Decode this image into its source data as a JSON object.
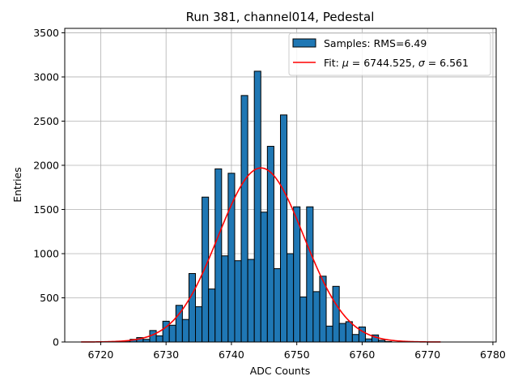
{
  "chart_data": {
    "type": "bar",
    "title": "Run 381, channel014, Pedestal",
    "xlabel": "ADC Counts",
    "ylabel": "Entries",
    "xlim": [
      6714.5,
      6780.5
    ],
    "ylim": [
      0,
      3550
    ],
    "grid": true,
    "legend_position": "top-right",
    "x_ticks": [
      6720,
      6730,
      6740,
      6750,
      6760,
      6770,
      6780
    ],
    "y_ticks": [
      0,
      500,
      1000,
      1500,
      2000,
      2500,
      3000,
      3500
    ],
    "colors": {
      "bars": "#1f77b4",
      "fit": "#ff0000",
      "grid": "#b0b0b0"
    },
    "series": [
      {
        "name": "Samples: RMS=6.49",
        "kind": "histogram",
        "bin_width": 1,
        "bins": [
          {
            "x": 6723,
            "y": 5
          },
          {
            "x": 6724,
            "y": 12
          },
          {
            "x": 6725,
            "y": 30
          },
          {
            "x": 6726,
            "y": 50
          },
          {
            "x": 6727,
            "y": 30
          },
          {
            "x": 6728,
            "y": 130
          },
          {
            "x": 6729,
            "y": 70
          },
          {
            "x": 6730,
            "y": 235
          },
          {
            "x": 6731,
            "y": 190
          },
          {
            "x": 6732,
            "y": 415
          },
          {
            "x": 6733,
            "y": 255
          },
          {
            "x": 6734,
            "y": 775
          },
          {
            "x": 6735,
            "y": 400
          },
          {
            "x": 6736,
            "y": 1640
          },
          {
            "x": 6737,
            "y": 600
          },
          {
            "x": 6738,
            "y": 1960
          },
          {
            "x": 6739,
            "y": 975
          },
          {
            "x": 6740,
            "y": 1910
          },
          {
            "x": 6741,
            "y": 920
          },
          {
            "x": 6742,
            "y": 2790
          },
          {
            "x": 6743,
            "y": 935
          },
          {
            "x": 6744,
            "y": 3065
          },
          {
            "x": 6745,
            "y": 1470
          },
          {
            "x": 6746,
            "y": 2215
          },
          {
            "x": 6747,
            "y": 830
          },
          {
            "x": 6748,
            "y": 2570
          },
          {
            "x": 6749,
            "y": 1000
          },
          {
            "x": 6750,
            "y": 1530
          },
          {
            "x": 6751,
            "y": 510
          },
          {
            "x": 6752,
            "y": 1530
          },
          {
            "x": 6753,
            "y": 570
          },
          {
            "x": 6754,
            "y": 745
          },
          {
            "x": 6755,
            "y": 180
          },
          {
            "x": 6756,
            "y": 630
          },
          {
            "x": 6757,
            "y": 210
          },
          {
            "x": 6758,
            "y": 230
          },
          {
            "x": 6759,
            "y": 85
          },
          {
            "x": 6760,
            "y": 170
          },
          {
            "x": 6761,
            "y": 35
          },
          {
            "x": 6762,
            "y": 80
          },
          {
            "x": 6763,
            "y": 20
          },
          {
            "x": 6764,
            "y": 5
          }
        ]
      },
      {
        "name": "Fit: μ = 6744.525, σ = 6.561",
        "kind": "gaussian",
        "mu": 6744.525,
        "sigma": 6.561,
        "amplitude": 1970,
        "x_range": [
          6717,
          6772
        ]
      }
    ],
    "legend": {
      "histogram_label": "Samples: RMS=6.49",
      "fit_label_prefix": "Fit: ",
      "fit_mu_symbol": "μ",
      "fit_mu_text": " = 6744.525, ",
      "fit_sigma_symbol": "σ",
      "fit_sigma_text": " = 6.561"
    }
  }
}
